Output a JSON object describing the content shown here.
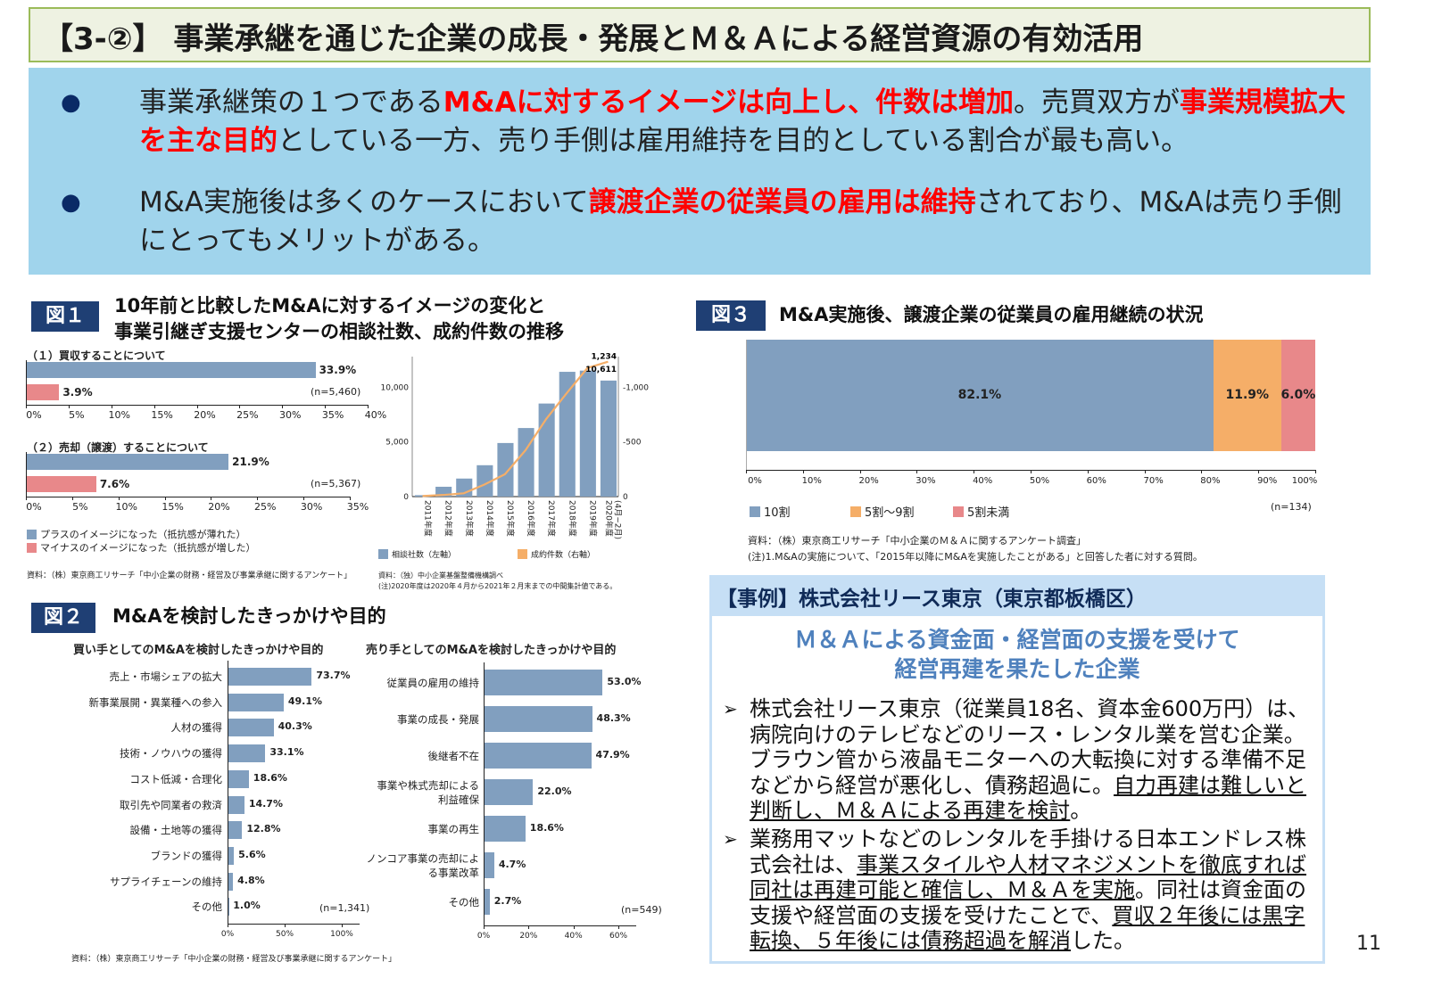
{
  "title": "【3-②】 事業承継を通じた企業の成長・発展とＭ＆Ａによる経営資源の有効活用",
  "summary": {
    "bullets": [
      [
        {
          "t": "事業承継策の１つである"
        },
        {
          "t": "M&Aに対するイメージは向上し、件数は増加",
          "red": true
        },
        {
          "t": "。売買双方が"
        },
        {
          "t": "事業規模拡大を主な目的",
          "red": true
        },
        {
          "t": "としている一方、売り手側は雇用維持を目的としている割合が最も高い。"
        }
      ],
      [
        {
          "t": "M&A実施後は多くのケースにおいて"
        },
        {
          "t": "譲渡企業の従業員の雇用は維持",
          "red": true
        },
        {
          "t": "されており、M&Aは売り手側にとってもメリットがある。"
        }
      ]
    ],
    "bullet_icon": "filled-circle"
  },
  "fig1": {
    "label": "図１",
    "title_line1": "10年前と比較したM&Aに対するイメージの変化と",
    "title_line2": "事業引継ぎ支援センターの相談社数、成約件数の推移",
    "part1": {
      "subtitle": "（１）買収することについて",
      "plus": 33.9,
      "minus": 3.9,
      "plus_label": "33.9%",
      "minus_label": "3.9%",
      "n": "(n=5,460)",
      "ticks": [
        "0%",
        "5%",
        "10%",
        "15%",
        "20%",
        "25%",
        "30%",
        "35%",
        "40%"
      ],
      "max": 40
    },
    "part2": {
      "subtitle": "（２）売却（譲渡）することについて",
      "plus": 21.9,
      "minus": 7.6,
      "plus_label": "21.9%",
      "minus_label": "7.6%",
      "n": "(n=5,367)",
      "ticks": [
        "0%",
        "5%",
        "10%",
        "15%",
        "20%",
        "25%",
        "30%",
        "35%"
      ],
      "max": 35
    },
    "legend_plus": "プラスのイメージになった（抵抗感が薄れた）",
    "legend_minus": "マイナスのイメージになった（抵抗感が増した）",
    "source": "資料：（株）東京商工リサーチ「中小企業の財務・経営及び事業承継に関するアンケート」",
    "colors": {
      "plus": "#819fbf",
      "minus": "#e8888a",
      "line": "#f5ae68"
    }
  },
  "chart_data": [
    {
      "type": "bar+line",
      "categories": [
        "2011年度",
        "2012年度",
        "2013年度",
        "2014年度",
        "2015年度",
        "2016年度",
        "2017年度",
        "2018年度",
        "2019年度",
        "2020年度\n(4月~2月)"
      ],
      "series": [
        {
          "name": "相談社数（左軸）",
          "type": "bar",
          "axis": "left",
          "values": [
            130,
            900,
            1650,
            2870,
            4900,
            6270,
            8510,
            11410,
            11520,
            10611
          ]
        },
        {
          "name": "成約件数（右軸）",
          "type": "line",
          "axis": "right",
          "values": [
            5,
            15,
            30,
            110,
            205,
            425,
            710,
            947,
            1176,
            1234
          ]
        }
      ],
      "left_ticks": [
        "0",
        "5,000",
        "10,000"
      ],
      "right_ticks": [
        "0",
        "500",
        "1,000"
      ],
      "ylim_left": [
        0,
        12800
      ],
      "ylim_right": [
        0,
        1280
      ],
      "data_labels": {
        "bar_last": "10,611",
        "line_last": "1,234"
      },
      "source": "資料：（独）中小企業基盤整備機構調べ",
      "note": "(注)2020年度は2020年４月から2021年２月末までの中間集計値である。"
    },
    {
      "type": "bar",
      "title": "買い手としてのM&Aを検討したきっかけや目的",
      "categories": [
        "売上・市場シェアの拡大",
        "新事業展開・異業種への参入",
        "人材の獲得",
        "技術・ノウハウの獲得",
        "コスト低減・合理化",
        "取引先や同業者の救済",
        "設備・土地等の獲得",
        "ブランドの獲得",
        "サプライチェーンの維持",
        "その他"
      ],
      "values": [
        73.7,
        49.1,
        40.3,
        33.1,
        18.6,
        14.7,
        12.8,
        5.6,
        4.8,
        1.0
      ],
      "labels": [
        "73.7%",
        "49.1%",
        "40.3%",
        "33.1%",
        "18.6%",
        "14.7%",
        "12.8%",
        "5.6%",
        "4.8%",
        "1.0%"
      ],
      "ticks": [
        "0%",
        "50%",
        "100%"
      ],
      "xlim": [
        0,
        100
      ],
      "n": "(n=1,341)"
    },
    {
      "type": "bar",
      "title": "売り手としてのM&Aを検討したきっかけや目的",
      "categories": [
        "従業員の雇用の維持",
        "事業の成長・発展",
        "後継者不在",
        "事業や株式売却による\n利益確保",
        "事業の再生",
        "ノンコア事業の売却によ\nる事業改革",
        "その他"
      ],
      "values": [
        53.0,
        48.3,
        47.9,
        22.0,
        18.6,
        4.7,
        2.7
      ],
      "labels": [
        "53.0%",
        "48.3%",
        "47.9%",
        "22.0%",
        "18.6%",
        "4.7%",
        "2.7%"
      ],
      "ticks": [
        "0%",
        "20%",
        "40%",
        "60%"
      ],
      "xlim": [
        0,
        60
      ],
      "n": "(n=549)"
    },
    {
      "type": "stacked-bar",
      "series": [
        {
          "name": "10割",
          "value": 82.1,
          "label": "82.1%",
          "color": "#819fbf"
        },
        {
          "name": "5割～9割",
          "value": 11.9,
          "label": "11.9%",
          "color": "#f5ae68"
        },
        {
          "name": "5割未満",
          "value": 6.0,
          "label": "6.0%",
          "color": "#e8888a"
        }
      ],
      "ticks": [
        "0%",
        "10%",
        "20%",
        "30%",
        "40%",
        "50%",
        "60%",
        "70%",
        "80%",
        "90%",
        "100%"
      ],
      "xlim": [
        0,
        100
      ],
      "n": "(n=134)"
    }
  ],
  "fig2": {
    "label": "図２",
    "title": "M&Aを検討したきっかけや目的",
    "source": "資料：（株）東京商工リサーチ「中小企業の財務・経営及び事業承継に関するアンケート」"
  },
  "fig3": {
    "label": "図３",
    "title": "M&A実施後、譲渡企業の従業員の雇用継続の状況",
    "source": "資料：（株）東京商工リサーチ「中小企業のＭ＆Ａに関するアンケート調査」",
    "note": "(注)1.M&Aの実施について、「2015年以降にM&Aを実施したことがある」と回答した者に対する質問。"
  },
  "case": {
    "header": "【事例】株式会社リース東京（東京都板橋区）",
    "subtitle_line1": "Ｍ＆Ａによる資金面・経営面の支援を受けて",
    "subtitle_line2": "経営再建を果たした企業",
    "bullet_icon": "arrow-right",
    "bullets": [
      [
        {
          "t": "株式会社リース東京（従業員18名、資本金600万円）は、病院向けのテレビなどのリース・レンタル業を営む企業。ブラウン管から液晶モニターへの大転換に対する準備不足などから経営が悪化し、債務超過に。"
        },
        {
          "t": "自力再建は難しいと判断し、Ｍ＆Ａによる再建を検討",
          "u": true
        },
        {
          "t": "。"
        }
      ],
      [
        {
          "t": "業務用マットなどのレンタルを手掛ける日本エンドレス株式会社は、"
        },
        {
          "t": "事業スタイルや人材マネジメントを徹底すれば同社は再建可能と確信し、Ｍ＆Ａを実施",
          "u": true
        },
        {
          "t": "。同社は資金面の支援や経営面の支援を受けたことで、"
        },
        {
          "t": "買収２年後には黒字転換、５年後には債務超過を解消",
          "u": true
        },
        {
          "t": "した。"
        }
      ]
    ]
  },
  "page_number": "11"
}
